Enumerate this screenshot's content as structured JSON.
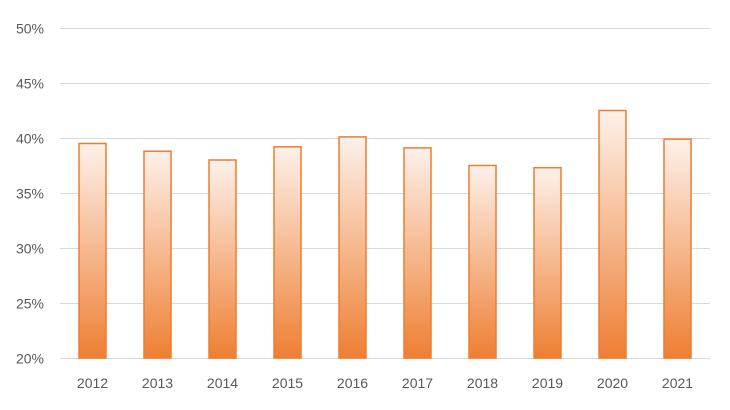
{
  "chart_data": {
    "type": "bar",
    "categories": [
      "2012",
      "2013",
      "2014",
      "2015",
      "2016",
      "2017",
      "2018",
      "2019",
      "2020",
      "2021"
    ],
    "values": [
      39.5,
      38.8,
      38.0,
      39.2,
      40.1,
      39.1,
      37.5,
      37.3,
      42.5,
      39.9
    ],
    "value_unit": "%",
    "ylim": [
      20,
      50
    ],
    "y_ticks": [
      20,
      25,
      30,
      35,
      40,
      45,
      50
    ],
    "y_tick_labels": [
      "20%",
      "25%",
      "30%",
      "35%",
      "40%",
      "45%",
      "50%"
    ],
    "title": "",
    "xlabel": "",
    "ylabel": "",
    "grid": true,
    "legend": "none",
    "colors": {
      "bar_stroke": "#ed7d31",
      "bar_fill_top": "#fdf1ea",
      "bar_fill_bottom": "#ee7f33",
      "grid": "#d9d9d9",
      "tick_text": "#595959"
    }
  }
}
